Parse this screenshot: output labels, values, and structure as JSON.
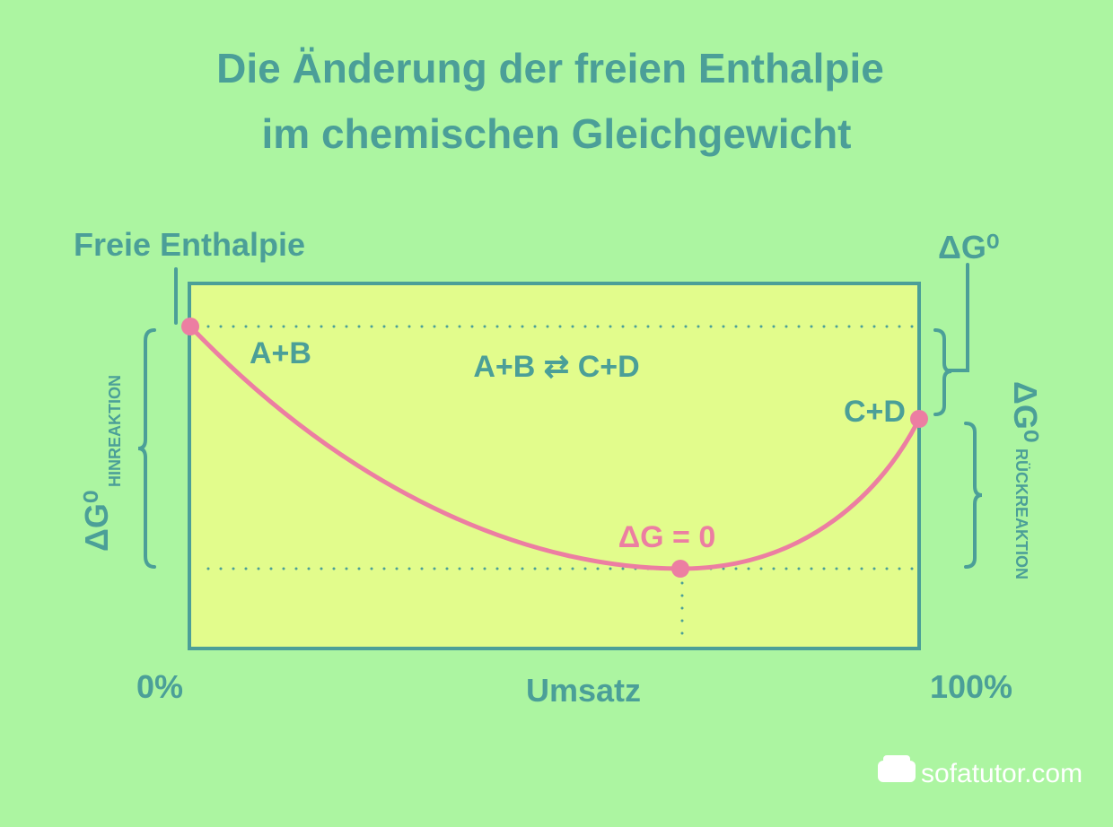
{
  "title": {
    "line1": "Die Änderung der freien Enthalpie",
    "line2": "im chemischen Gleichgewicht"
  },
  "axis": {
    "y_label": "Freie Enthalpie",
    "x_label": "Umsatz",
    "x_start": "0%",
    "x_end": "100%"
  },
  "labels": {
    "reactants": "A+B",
    "equation": "A+B ⇄ C+D",
    "products": "C+D",
    "equilibrium": "ΔG = 0",
    "delta_g_total": "ΔG⁰",
    "delta_g_forward": {
      "symbol": "ΔG⁰",
      "subscript": "HINREAKTION"
    },
    "delta_g_reverse": {
      "symbol": "ΔG⁰",
      "subscript": "RÜCKREAKTION"
    }
  },
  "footer": {
    "brand": "sofatutor.com"
  }
}
